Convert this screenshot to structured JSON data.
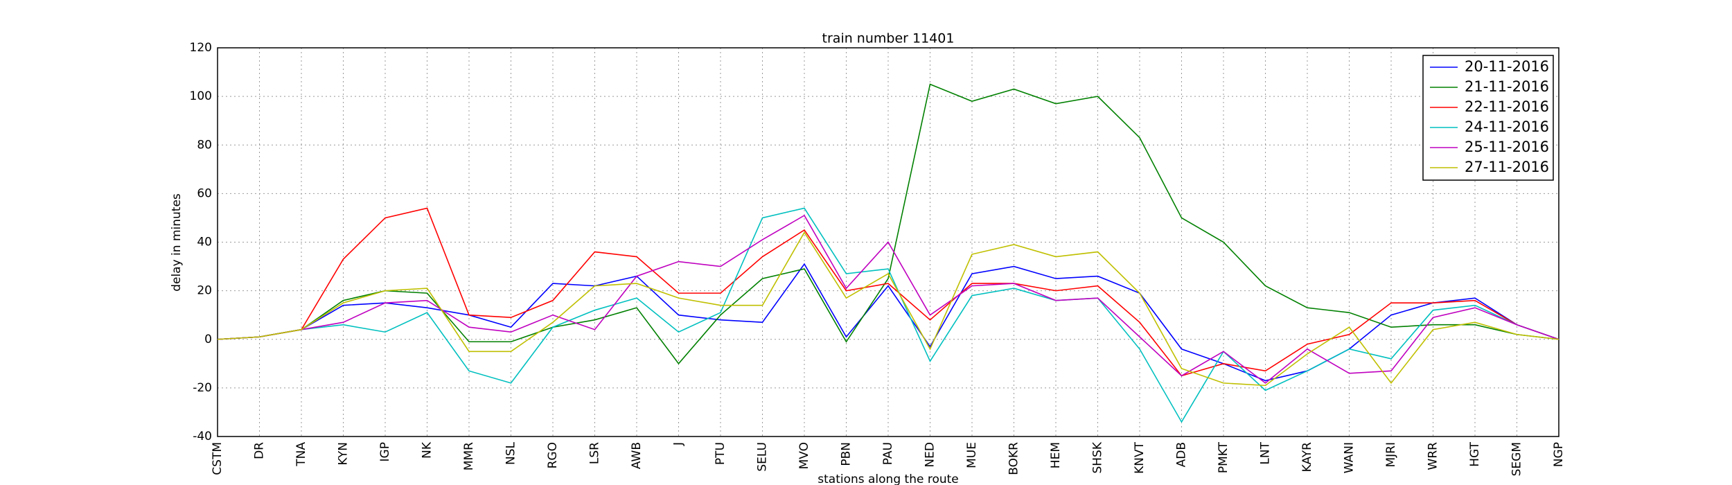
{
  "chart_data": {
    "type": "line",
    "title": "train number 11401",
    "x_label": "stations along the route",
    "y_label": "delay in minutes",
    "categories": [
      "CSTM",
      "DR",
      "TNA",
      "KYN",
      "IGP",
      "NK",
      "MMR",
      "NSL",
      "RGO",
      "LSR",
      "AWB",
      "J",
      "PTU",
      "SELU",
      "MVO",
      "PBN",
      "PAU",
      "NED",
      "MUE",
      "BOKR",
      "HEM",
      "SHSK",
      "KNVT",
      "ADB",
      "PMKT",
      "LNT",
      "KAYR",
      "WANI",
      "MJRI",
      "WRR",
      "HGT",
      "SEGM",
      "NGP"
    ],
    "series": [
      {
        "name": "20-11-2016",
        "color": "#0000ff",
        "values": [
          0,
          1,
          4,
          14,
          15,
          13,
          10,
          5,
          23,
          22,
          26,
          10,
          8,
          7,
          31,
          1,
          22,
          -3,
          27,
          30,
          25,
          26,
          19,
          -4,
          -10,
          -17,
          -13,
          -4,
          10,
          15,
          17,
          6,
          0
        ]
      },
      {
        "name": "21-11-2016",
        "color": "#008000",
        "values": [
          0,
          1,
          4,
          16,
          20,
          19,
          -1,
          -1,
          5,
          8,
          13,
          -10,
          10,
          25,
          29,
          -1,
          25,
          105,
          98,
          103,
          97,
          100,
          83,
          50,
          40,
          22,
          13,
          11,
          5,
          6,
          6,
          2,
          0
        ]
      },
      {
        "name": "22-11-2016",
        "color": "#ff0000",
        "values": [
          0,
          1,
          4,
          33,
          50,
          54,
          10,
          9,
          16,
          36,
          34,
          19,
          19,
          34,
          45,
          20,
          23,
          8,
          23,
          23,
          20,
          22,
          7,
          -15,
          -10,
          -13,
          -2,
          2,
          15,
          15,
          16,
          6,
          0
        ]
      },
      {
        "name": "24-11-2016",
        "color": "#00bfbf",
        "values": [
          0,
          1,
          4,
          6,
          3,
          11,
          -13,
          -18,
          5,
          12,
          17,
          3,
          11,
          50,
          54,
          27,
          29,
          -9,
          18,
          21,
          16,
          17,
          -4,
          -34,
          -5,
          -21,
          -13,
          -4,
          -8,
          12,
          14,
          6,
          0
        ]
      },
      {
        "name": "25-11-2016",
        "color": "#bf00bf",
        "values": [
          0,
          1,
          4,
          7,
          15,
          16,
          5,
          3,
          10,
          4,
          26,
          32,
          30,
          41,
          51,
          21,
          40,
          10,
          22,
          23,
          16,
          17,
          1,
          -15,
          -5,
          -18,
          -4,
          -14,
          -13,
          9,
          13,
          6,
          0
        ]
      },
      {
        "name": "27-11-2016",
        "color": "#bfbf00",
        "values": [
          0,
          1,
          4,
          15,
          20,
          21,
          -5,
          -5,
          7,
          22,
          23,
          17,
          14,
          14,
          44,
          17,
          27,
          -4,
          35,
          39,
          34,
          36,
          19,
          -12,
          -18,
          -19,
          -6,
          5,
          -18,
          4,
          7,
          2,
          0
        ]
      }
    ],
    "ylim": [
      -40,
      120
    ],
    "yticks": [
      -40,
      -20,
      0,
      20,
      40,
      60,
      80,
      100,
      120
    ],
    "grid": true,
    "legend": "upper right"
  }
}
